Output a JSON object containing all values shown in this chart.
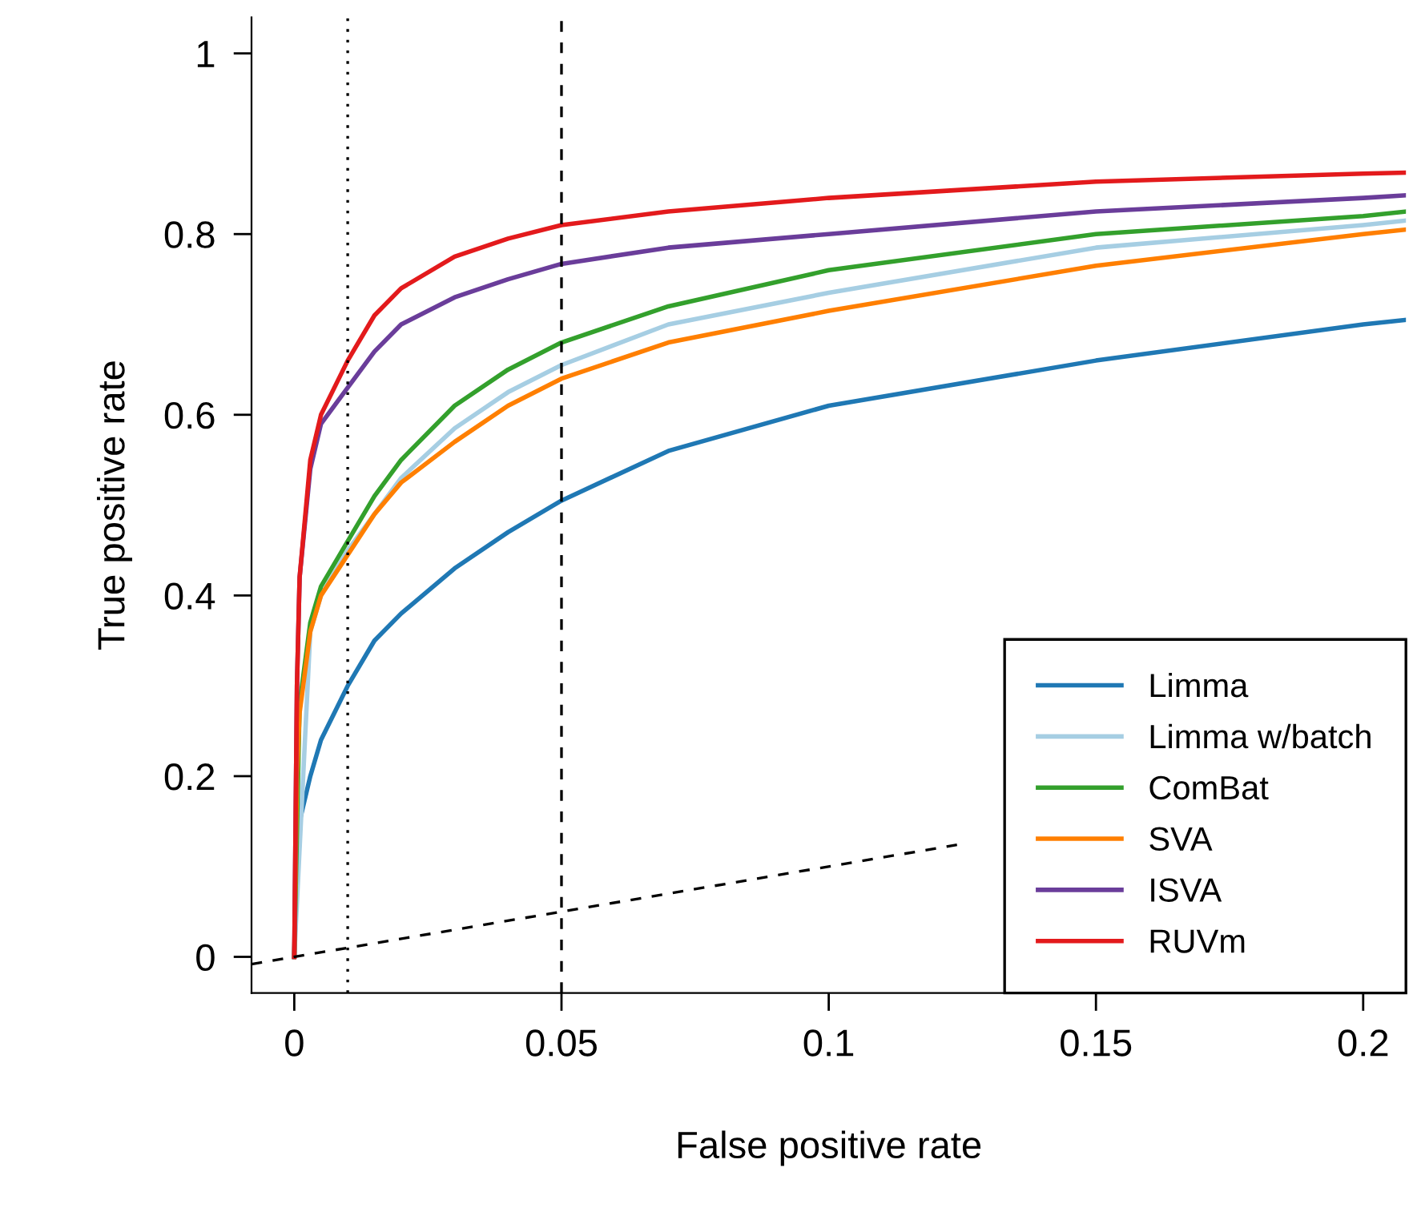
{
  "chart_data": {
    "type": "line",
    "xlabel": "False positive rate",
    "ylabel": "True positive rate",
    "xlim": [
      -0.008,
      0.208
    ],
    "ylim": [
      -0.04,
      1.04
    ],
    "xticks": [
      0,
      0.05,
      0.1,
      0.15,
      0.2
    ],
    "yticks": [
      0,
      0.2,
      0.4,
      0.6,
      0.8,
      1
    ],
    "grid": false,
    "legend": "bottom right",
    "marker": "none",
    "line_style": "solid",
    "ref_lines": [
      {
        "axis": "x",
        "value": 0.01,
        "line_style": "dotted",
        "color": "#000000"
      },
      {
        "axis": "x",
        "value": 0.05,
        "line_style": "dashed",
        "color": "#000000"
      }
    ],
    "series": [
      {
        "name": "Limma",
        "color": "#1f78b4",
        "x": [
          0,
          0.0005,
          0.001,
          0.003,
          0.005,
          0.01,
          0.015,
          0.02,
          0.03,
          0.04,
          0.05,
          0.07,
          0.1,
          0.15,
          0.2,
          0.208
        ],
        "values": [
          0,
          0.1,
          0.15,
          0.2,
          0.24,
          0.3,
          0.35,
          0.38,
          0.43,
          0.47,
          0.505,
          0.56,
          0.61,
          0.66,
          0.7,
          0.705
        ]
      },
      {
        "name": "Limma w/batch",
        "color": "#a6cee3",
        "x": [
          0,
          0.003,
          0.005,
          0.01,
          0.015,
          0.02,
          0.03,
          0.04,
          0.05,
          0.07,
          0.1,
          0.15,
          0.2,
          0.208
        ],
        "values": [
          0,
          0.36,
          0.4,
          0.45,
          0.49,
          0.53,
          0.585,
          0.625,
          0.655,
          0.7,
          0.735,
          0.785,
          0.81,
          0.815
        ]
      },
      {
        "name": "ComBat",
        "color": "#33a02c",
        "x": [
          0,
          0.001,
          0.003,
          0.005,
          0.01,
          0.015,
          0.02,
          0.03,
          0.04,
          0.05,
          0.07,
          0.1,
          0.15,
          0.2,
          0.208
        ],
        "values": [
          0,
          0.28,
          0.37,
          0.41,
          0.46,
          0.51,
          0.55,
          0.61,
          0.65,
          0.68,
          0.72,
          0.76,
          0.8,
          0.82,
          0.825
        ]
      },
      {
        "name": "SVA",
        "color": "#ff7f00",
        "x": [
          0,
          0.0005,
          0.001,
          0.003,
          0.005,
          0.01,
          0.015,
          0.02,
          0.03,
          0.04,
          0.05,
          0.07,
          0.1,
          0.15,
          0.2,
          0.208
        ],
        "values": [
          0,
          0.2,
          0.27,
          0.36,
          0.4,
          0.445,
          0.49,
          0.525,
          0.57,
          0.61,
          0.64,
          0.68,
          0.715,
          0.765,
          0.8,
          0.805
        ]
      },
      {
        "name": "ISVA",
        "color": "#6a3d9a",
        "x": [
          0,
          0.0005,
          0.001,
          0.003,
          0.005,
          0.01,
          0.015,
          0.02,
          0.03,
          0.04,
          0.05,
          0.07,
          0.1,
          0.15,
          0.2,
          0.208
        ],
        "values": [
          0,
          0.3,
          0.42,
          0.54,
          0.59,
          0.63,
          0.67,
          0.7,
          0.73,
          0.75,
          0.767,
          0.785,
          0.8,
          0.825,
          0.84,
          0.843
        ]
      },
      {
        "name": "RUVm",
        "color": "#e31a1c",
        "x": [
          0,
          0.0005,
          0.001,
          0.003,
          0.005,
          0.01,
          0.015,
          0.02,
          0.03,
          0.04,
          0.05,
          0.07,
          0.1,
          0.15,
          0.2,
          0.208
        ],
        "values": [
          0,
          0.3,
          0.42,
          0.55,
          0.6,
          0.66,
          0.71,
          0.74,
          0.775,
          0.795,
          0.81,
          0.825,
          0.84,
          0.858,
          0.867,
          0.868
        ]
      },
      {
        "color": "#000000",
        "line_style": "dashed",
        "x": [
          -0.008,
          0.124
        ],
        "values": [
          -0.008,
          0.124
        ]
      }
    ]
  }
}
